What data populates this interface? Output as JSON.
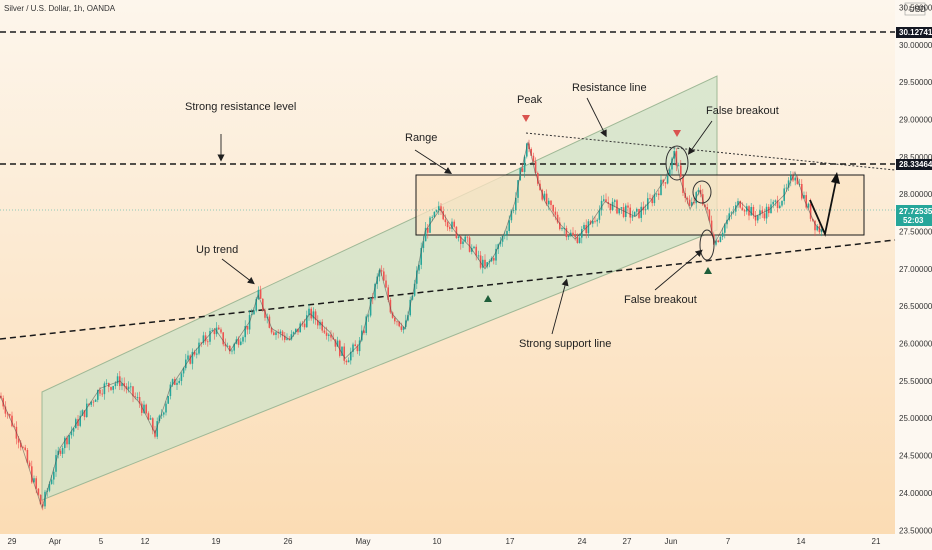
{
  "header": {
    "title": "Silver / U.S. Dollar, 1h, OANDA",
    "currency": "USD"
  },
  "colors": {
    "bg_top": "#fdf6ec",
    "bg_bottom": "#fbdcb4",
    "channel_fill": "#cfe3c8",
    "channel_stroke": "#9fb896",
    "range_fill": "#fbe3c3",
    "range_stroke": "#1a1a1a",
    "up_candle": "#26a69a",
    "down_candle": "#ef5350",
    "green_arrow": "#1e5e3a",
    "red_arrow": "#d9534f",
    "badge_bg": "#131722",
    "price_badge_bg": "#26a69a"
  },
  "chart_data": {
    "type": "candlestick",
    "title": "Silver / U.S. Dollar, 1h, OANDA",
    "ylim": [
      23.45,
      30.6
    ],
    "y_ticks": [
      "30.50000",
      "30.00000",
      "29.50000",
      "29.00000",
      "28.50000",
      "28.00000",
      "27.50000",
      "27.00000",
      "26.50000",
      "26.00000",
      "25.50000",
      "25.00000",
      "24.50000",
      "24.00000",
      "23.50000"
    ],
    "x_ticks": [
      "29",
      "Apr",
      "5",
      "12",
      "19",
      "26",
      "May",
      "10",
      "17",
      "24",
      "27",
      "Jun",
      "7",
      "14",
      "21"
    ],
    "levels": [
      {
        "name": "Strong resistance level",
        "value": 30.12741,
        "label": "30.12741",
        "style": "dashed"
      },
      {
        "name": "Strong resistance level",
        "value": 28.33464,
        "label": "28.33464",
        "style": "dashed"
      }
    ],
    "current_price": {
      "value": 27.72535,
      "label": "27.72535",
      "countdown": "52:03"
    },
    "series": [
      {
        "name": "price",
        "points": [
          [
            0,
            25.3
          ],
          [
            20,
            24.7
          ],
          [
            42,
            23.8
          ],
          [
            60,
            24.6
          ],
          [
            80,
            25.0
          ],
          [
            100,
            25.4
          ],
          [
            120,
            25.5
          ],
          [
            140,
            25.2
          ],
          [
            155,
            24.8
          ],
          [
            170,
            25.4
          ],
          [
            195,
            25.9
          ],
          [
            215,
            26.2
          ],
          [
            230,
            25.9
          ],
          [
            250,
            26.3
          ],
          [
            258,
            26.65
          ],
          [
            272,
            26.2
          ],
          [
            290,
            26.05
          ],
          [
            310,
            26.4
          ],
          [
            330,
            26.15
          ],
          [
            345,
            25.8
          ],
          [
            360,
            26.0
          ],
          [
            372,
            26.6
          ],
          [
            380,
            27.0
          ],
          [
            392,
            26.4
          ],
          [
            405,
            26.2
          ],
          [
            415,
            26.8
          ],
          [
            425,
            27.5
          ],
          [
            440,
            27.8
          ],
          [
            455,
            27.5
          ],
          [
            470,
            27.3
          ],
          [
            485,
            27.0
          ],
          [
            495,
            27.2
          ],
          [
            505,
            27.5
          ],
          [
            515,
            27.9
          ],
          [
            520,
            28.25
          ],
          [
            528,
            28.7
          ],
          [
            535,
            28.3
          ],
          [
            545,
            27.9
          ],
          [
            560,
            27.6
          ],
          [
            575,
            27.4
          ],
          [
            590,
            27.6
          ],
          [
            605,
            27.9
          ],
          [
            620,
            27.8
          ],
          [
            635,
            27.7
          ],
          [
            650,
            27.9
          ],
          [
            665,
            28.2
          ],
          [
            675,
            28.55
          ],
          [
            680,
            28.2
          ],
          [
            690,
            27.8
          ],
          [
            700,
            28.05
          ],
          [
            708,
            27.7
          ],
          [
            715,
            27.35
          ],
          [
            725,
            27.6
          ],
          [
            740,
            27.9
          ],
          [
            755,
            27.7
          ],
          [
            770,
            27.8
          ],
          [
            785,
            28.0
          ],
          [
            795,
            28.3
          ],
          [
            805,
            27.9
          ],
          [
            815,
            27.6
          ],
          [
            822,
            27.5
          ]
        ]
      }
    ],
    "annotations": [
      {
        "text": "Strong resistance level"
      },
      {
        "text": "Range"
      },
      {
        "text": "Peak"
      },
      {
        "text": "Resistance line"
      },
      {
        "text": "False breakout"
      },
      {
        "text": "Up trend"
      },
      {
        "text": "False breakout"
      },
      {
        "text": "Strong support line"
      }
    ]
  }
}
